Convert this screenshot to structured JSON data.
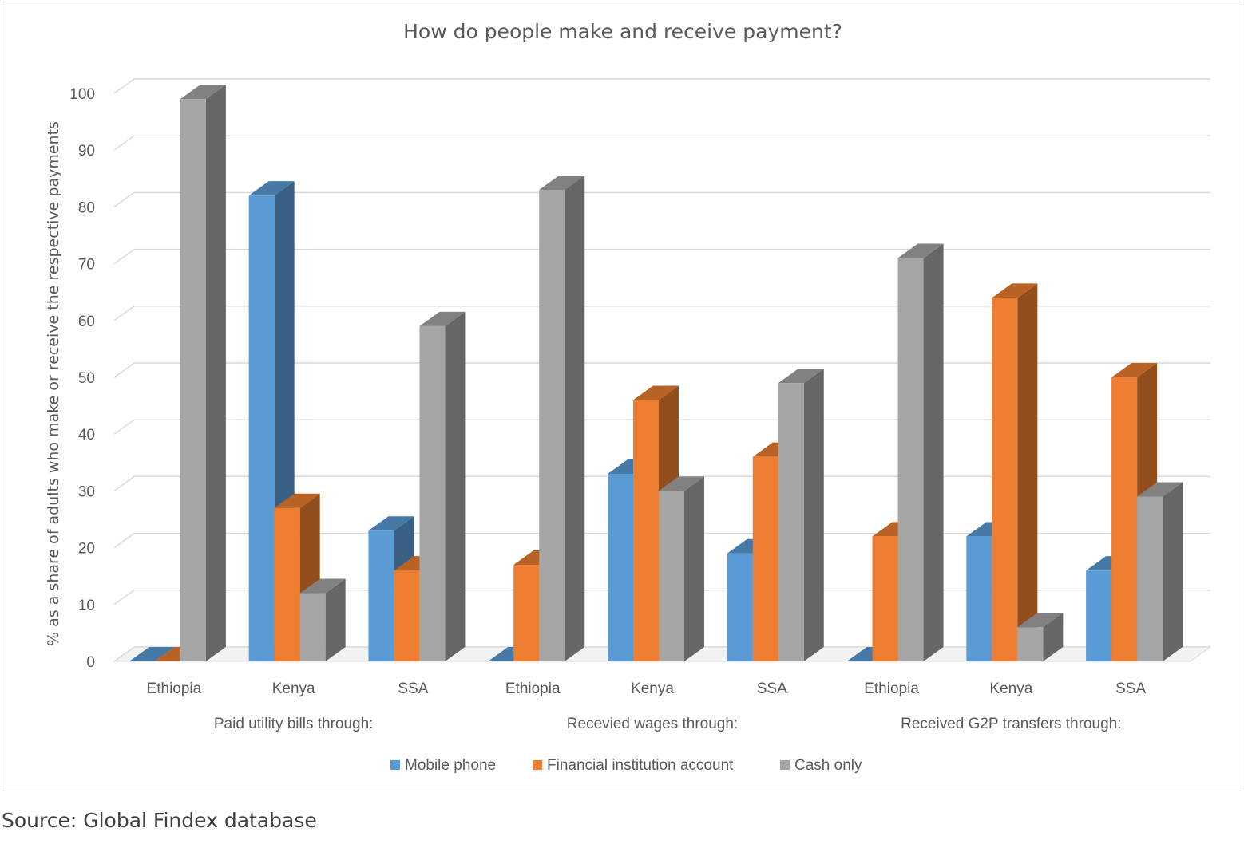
{
  "chart_data": {
    "type": "bar",
    "style": "3d-clustered-column",
    "title": "How do people make and receive payment?",
    "ylabel": "% as a share of adults who make or receive the respective payments",
    "xlabel": "",
    "ylim": [
      0,
      100
    ],
    "yticks": [
      "0",
      "10",
      "20",
      "30",
      "40",
      "50",
      "60",
      "70",
      "80",
      "90",
      "100"
    ],
    "grid": true,
    "legend_position": "bottom",
    "groups": [
      {
        "label": "Paid utility bills through:",
        "categories": [
          "Ethiopia",
          "Kenya",
          "SSA"
        ]
      },
      {
        "label": "Recevied wages through:",
        "categories": [
          "Ethiopia",
          "Kenya",
          "SSA"
        ]
      },
      {
        "label": "Received G2P transfers through:",
        "categories": [
          "Ethiopia",
          "Kenya",
          "SSA"
        ]
      }
    ],
    "series": [
      {
        "name": "Mobile phone",
        "color": "#5b9bd5",
        "values": [
          0,
          82,
          23,
          0,
          33,
          19,
          0,
          22,
          16
        ]
      },
      {
        "name": "Financial institution account",
        "color": "#ed7d31",
        "values": [
          0,
          27,
          16,
          17,
          46,
          36,
          22,
          64,
          50
        ]
      },
      {
        "name": "Cash only",
        "color": "#a5a5a5",
        "values": [
          99,
          12,
          59,
          83,
          30,
          49,
          71,
          6,
          29
        ]
      }
    ]
  },
  "source": "Source: Global Findex database"
}
